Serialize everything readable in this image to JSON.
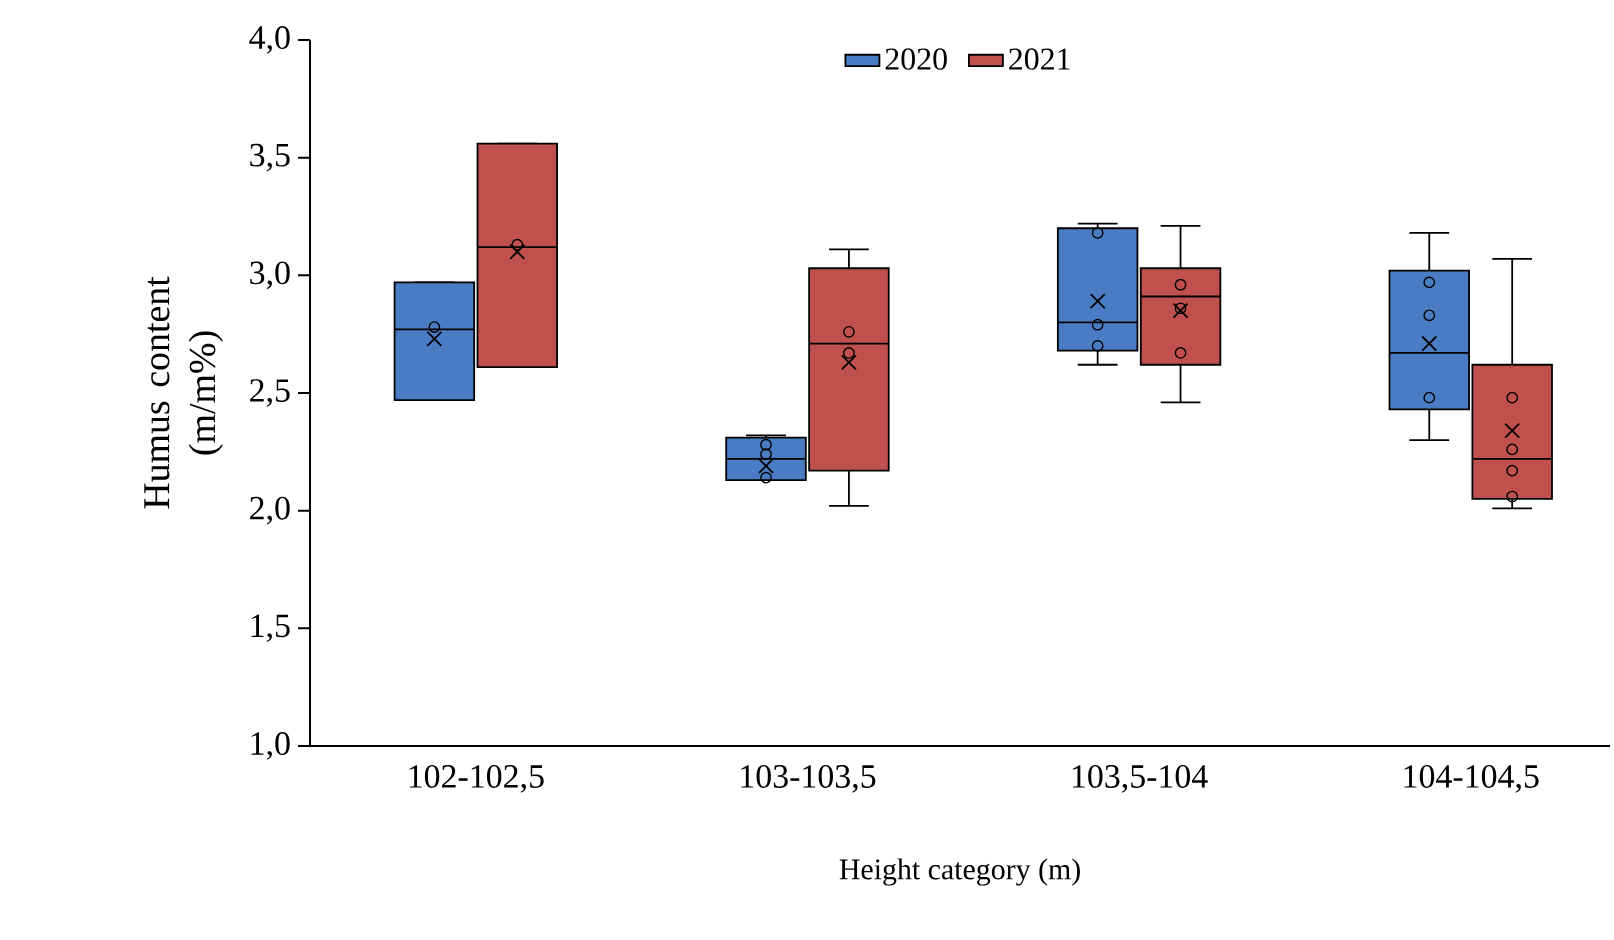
{
  "chart_data": {
    "type": "box",
    "xlabel": "Height category (m)",
    "ylabel": "Humus content (m/m%)",
    "categories": [
      "102-102,5",
      "103-103,5",
      "103,5-104",
      "104-104,5"
    ],
    "ylim": [
      1,
      4
    ],
    "yticks": [
      {
        "value": 1,
        "label": "1,0"
      },
      {
        "value": 1.5,
        "label": "1,5"
      },
      {
        "value": 2,
        "label": "2,0"
      },
      {
        "value": 2.5,
        "label": "2,5"
      },
      {
        "value": 3,
        "label": "3,0"
      },
      {
        "value": 3.5,
        "label": "3,5"
      },
      {
        "value": 4,
        "label": "4,0"
      }
    ],
    "legend": "top",
    "grid": false,
    "series": [
      {
        "name": "2020",
        "color": "#4a7cc4",
        "boxes": [
          {
            "low": 2.47,
            "q1": 2.47,
            "median": 2.77,
            "q3": 2.97,
            "high": 2.97,
            "mean": 2.73,
            "outliers": [
              2.78
            ]
          },
          {
            "low": 2.13,
            "q1": 2.13,
            "median": 2.22,
            "q3": 2.31,
            "high": 2.32,
            "mean": 2.19,
            "outliers": [
              2.28,
              2.24,
              2.14
            ]
          },
          {
            "low": 2.62,
            "q1": 2.68,
            "median": 2.8,
            "q3": 3.2,
            "high": 3.22,
            "mean": 2.89,
            "outliers": [
              3.18,
              2.79,
              2.7
            ]
          },
          {
            "low": 2.3,
            "q1": 2.43,
            "median": 2.67,
            "q3": 3.02,
            "high": 3.18,
            "mean": 2.71,
            "outliers": [
              2.97,
              2.83,
              2.48
            ]
          }
        ]
      },
      {
        "name": "2021",
        "color": "#c0504d",
        "boxes": [
          {
            "low": 2.61,
            "q1": 2.61,
            "median": 3.12,
            "q3": 3.56,
            "high": 3.56,
            "mean": 3.1,
            "outliers": [
              3.13
            ]
          },
          {
            "low": 2.02,
            "q1": 2.17,
            "median": 2.71,
            "q3": 3.03,
            "high": 3.11,
            "mean": 2.63,
            "outliers": [
              2.76,
              2.67
            ]
          },
          {
            "low": 2.46,
            "q1": 2.62,
            "median": 2.91,
            "q3": 3.03,
            "high": 3.21,
            "mean": 2.85,
            "outliers": [
              2.96,
              2.86,
              2.67
            ]
          },
          {
            "low": 2.01,
            "q1": 2.05,
            "median": 2.22,
            "q3": 2.62,
            "high": 3.07,
            "mean": 2.34,
            "outliers": [
              2.48,
              2.26,
              2.17,
              2.06
            ]
          }
        ]
      }
    ]
  }
}
